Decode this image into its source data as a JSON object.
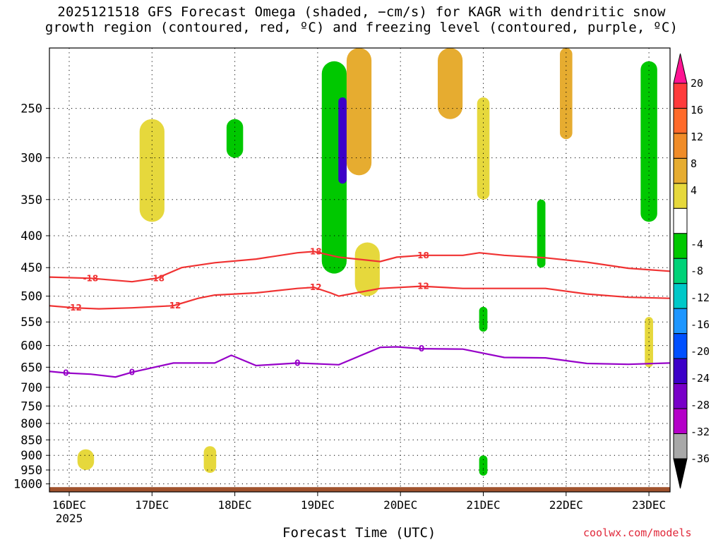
{
  "chart_data": {
    "type": "heatmap",
    "title": [
      "2025121518 GFS Forecast Omega (shaded, −cm/s) for KAGR with dendritic snow",
      "growth region (contoured, red, ºC) and freezing level (contoured, purple, ºC)"
    ],
    "xlabel": "Forecast Time (UTC)",
    "year_label": "2025",
    "x_ticks": [
      "16DEC",
      "17DEC",
      "18DEC",
      "19DEC",
      "20DEC",
      "21DEC",
      "22DEC",
      "23DEC"
    ],
    "xlim": [
      "2025-12-15 18Z",
      "2025-12-23 06Z"
    ],
    "y_ticks": [
      250,
      300,
      350,
      400,
      450,
      500,
      550,
      600,
      650,
      700,
      750,
      800,
      850,
      900,
      950,
      1000
    ],
    "ylim": [
      200,
      1030
    ],
    "y_scale": "log pressure (hPa), inverted",
    "grid": true,
    "colorbar": {
      "labels": [
        20,
        16,
        12,
        8,
        4,
        -4,
        -8,
        -12,
        -16,
        -20,
        -24,
        -28,
        -32,
        -36
      ],
      "colors": [
        "#ff1493",
        "#ff3b3b",
        "#ff6a2a",
        "#f08c28",
        "#e6ac30",
        "#e6d83c",
        "#ffffff",
        "#00c800",
        "#00d278",
        "#00c8c8",
        "#1e96ff",
        "#0050ff",
        "#3c00c8",
        "#7800c8",
        "#b400c8",
        "#a8a8a8",
        "#000000"
      ]
    },
    "contours": [
      {
        "label": "-18",
        "color": "#f03232",
        "x": [
          0,
          0.5,
          1,
          1.2,
          1.3,
          1.6,
          2.0,
          2.5,
          3.0,
          3.2,
          3.5,
          4.0,
          4.2,
          4.5,
          5.0,
          5.2,
          5.5,
          6.0,
          6.5,
          7.0,
          7.5
        ],
        "y": [
          466,
          468,
          474,
          470,
          468,
          450,
          442,
          436,
          426,
          424,
          433,
          440,
          433,
          430,
          430,
          426,
          430,
          434,
          441,
          451,
          456
        ]
      },
      {
        "label": "-12",
        "color": "#f03232",
        "x": [
          0,
          0.3,
          0.6,
          1.0,
          1.5,
          1.8,
          2.0,
          2.5,
          3.0,
          3.2,
          3.4,
          3.5,
          4.0,
          4.5,
          5.0,
          5.5,
          6.0,
          6.5,
          7.0,
          7.5
        ],
        "y": [
          518,
          522,
          524,
          522,
          518,
          504,
          498,
          494,
          486,
          484,
          494,
          500,
          486,
          482,
          486,
          486,
          486,
          496,
          502,
          504
        ]
      },
      {
        "label": "0",
        "color": "#9600c8",
        "x": [
          0,
          0.2,
          0.5,
          0.8,
          1.0,
          1.5,
          2.0,
          2.2,
          2.5,
          3.0,
          3.5,
          4.0,
          4.2,
          4.5,
          5.0,
          5.5,
          6.0,
          6.5,
          7.0,
          7.5
        ],
        "y": [
          660,
          664,
          667,
          674,
          662,
          640,
          640,
          622,
          646,
          640,
          644,
          604,
          603,
          607,
          608,
          627,
          628,
          641,
          643,
          640
        ]
      }
    ],
    "ground_pressure": 1012,
    "omega_regions": [
      {
        "x": 0.2,
        "p": [
          880,
          950
        ],
        "w": 0.2,
        "value": 6
      },
      {
        "x": 1.0,
        "p": [
          260,
          380
        ],
        "w": 0.3,
        "value": 5
      },
      {
        "x": 1.7,
        "p": [
          870,
          960
        ],
        "w": 0.15,
        "value": 6
      },
      {
        "x": 2.0,
        "p": [
          260,
          300
        ],
        "w": 0.2,
        "value": -6
      },
      {
        "x": 3.2,
        "p": [
          210,
          460
        ],
        "w": 0.3,
        "value": -7
      },
      {
        "x": 3.3,
        "p": [
          240,
          330
        ],
        "w": 0.1,
        "value": -24
      },
      {
        "x": 3.5,
        "p": [
          200,
          320
        ],
        "w": 0.3,
        "value": 10
      },
      {
        "x": 3.6,
        "p": [
          410,
          500
        ],
        "w": 0.3,
        "value": 6
      },
      {
        "x": 4.6,
        "p": [
          200,
          260
        ],
        "w": 0.3,
        "value": 10
      },
      {
        "x": 5.0,
        "p": [
          240,
          350
        ],
        "w": 0.15,
        "value": 6
      },
      {
        "x": 5.0,
        "p": [
          520,
          570
        ],
        "w": 0.1,
        "value": -6
      },
      {
        "x": 5.0,
        "p": [
          900,
          970
        ],
        "w": 0.1,
        "value": -6
      },
      {
        "x": 5.7,
        "p": [
          350,
          450
        ],
        "w": 0.1,
        "value": -6
      },
      {
        "x": 6.0,
        "p": [
          200,
          280
        ],
        "w": 0.15,
        "value": 10
      },
      {
        "x": 7.0,
        "p": [
          210,
          380
        ],
        "w": 0.2,
        "value": -7
      },
      {
        "x": 7.0,
        "p": [
          540,
          650
        ],
        "w": 0.1,
        "value": 6
      }
    ]
  }
}
